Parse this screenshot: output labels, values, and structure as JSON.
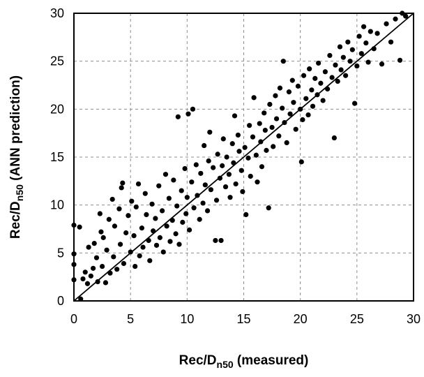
{
  "chart_data": {
    "type": "scatter",
    "xlabel": {
      "main": "Rec/D",
      "sub": "n50",
      "suffix": " (measured)"
    },
    "ylabel": {
      "main": "Rec/D",
      "sub": "n50",
      "suffix": " (ANN prediction)"
    },
    "xlim": [
      0,
      30
    ],
    "ylim": [
      0,
      30
    ],
    "xticks": [
      0,
      5,
      10,
      15,
      20,
      25,
      30
    ],
    "yticks": [
      0,
      5,
      10,
      15,
      20,
      25,
      30
    ],
    "grid": true,
    "legend": "none",
    "reference_line": {
      "from": [
        0,
        0
      ],
      "to": [
        30,
        30
      ]
    },
    "marker_color": "#000000",
    "series": [
      {
        "points": [
          [
            0.0,
            2.2
          ],
          [
            0.0,
            3.8
          ],
          [
            0.0,
            4.9
          ],
          [
            0.0,
            7.9
          ],
          [
            0.5,
            7.7
          ],
          [
            0.6,
            0.2
          ],
          [
            0.8,
            2.3
          ],
          [
            1.0,
            3.0
          ],
          [
            1.2,
            1.8
          ],
          [
            1.3,
            5.6
          ],
          [
            1.5,
            2.6
          ],
          [
            1.7,
            3.4
          ],
          [
            1.8,
            6.0
          ],
          [
            2.0,
            4.5
          ],
          [
            2.1,
            2.0
          ],
          [
            2.3,
            9.1
          ],
          [
            2.4,
            7.2
          ],
          [
            2.5,
            3.6
          ],
          [
            2.6,
            6.6
          ],
          [
            2.8,
            1.9
          ],
          [
            2.9,
            5.3
          ],
          [
            3.1,
            8.5
          ],
          [
            3.2,
            2.9
          ],
          [
            3.4,
            10.6
          ],
          [
            3.5,
            4.6
          ],
          [
            3.6,
            7.8
          ],
          [
            3.8,
            3.3
          ],
          [
            4.0,
            9.6
          ],
          [
            4.1,
            5.9
          ],
          [
            4.2,
            11.8
          ],
          [
            4.3,
            12.3
          ],
          [
            4.4,
            3.9
          ],
          [
            4.6,
            7.1
          ],
          [
            4.8,
            8.9
          ],
          [
            5.0,
            5.1
          ],
          [
            5.1,
            10.4
          ],
          [
            5.3,
            6.8
          ],
          [
            5.4,
            3.6
          ],
          [
            5.5,
            9.8
          ],
          [
            5.7,
            12.2
          ],
          [
            5.8,
            4.7
          ],
          [
            6.0,
            7.6
          ],
          [
            6.1,
            5.6
          ],
          [
            6.3,
            11.2
          ],
          [
            6.4,
            9.0
          ],
          [
            6.6,
            6.3
          ],
          [
            6.7,
            4.2
          ],
          [
            6.9,
            10.1
          ],
          [
            7.0,
            7.3
          ],
          [
            7.2,
            8.6
          ],
          [
            7.3,
            5.8
          ],
          [
            7.5,
            12.0
          ],
          [
            7.6,
            6.6
          ],
          [
            7.8,
            9.4
          ],
          [
            7.9,
            5.1
          ],
          [
            8.1,
            13.2
          ],
          [
            8.2,
            7.8
          ],
          [
            8.4,
            10.7
          ],
          [
            8.5,
            6.2
          ],
          [
            8.7,
            8.4
          ],
          [
            8.8,
            12.6
          ],
          [
            9.0,
            7.0
          ],
          [
            9.1,
            9.9
          ],
          [
            9.2,
            19.2
          ],
          [
            9.3,
            5.9
          ],
          [
            9.5,
            11.5
          ],
          [
            9.6,
            8.2
          ],
          [
            9.8,
            13.8
          ],
          [
            9.9,
            9.1
          ],
          [
            10.0,
            10.8
          ],
          [
            10.1,
            19.5
          ],
          [
            10.2,
            7.4
          ],
          [
            10.4,
            12.4
          ],
          [
            10.5,
            20.0
          ],
          [
            10.6,
            9.7
          ],
          [
            10.8,
            14.2
          ],
          [
            10.9,
            11.0
          ],
          [
            11.1,
            8.5
          ],
          [
            11.2,
            13.3
          ],
          [
            11.4,
            10.2
          ],
          [
            11.5,
            16.2
          ],
          [
            11.6,
            12.1
          ],
          [
            11.8,
            9.4
          ],
          [
            11.9,
            14.6
          ],
          [
            12.0,
            17.6
          ],
          [
            12.1,
            11.6
          ],
          [
            12.3,
            13.9
          ],
          [
            12.5,
            6.3
          ],
          [
            12.6,
            10.5
          ],
          [
            12.7,
            15.3
          ],
          [
            12.9,
            12.8
          ],
          [
            13.0,
            6.3
          ],
          [
            13.1,
            14.1
          ],
          [
            13.2,
            16.9
          ],
          [
            13.4,
            11.9
          ],
          [
            13.5,
            15.0
          ],
          [
            13.7,
            13.2
          ],
          [
            13.8,
            10.8
          ],
          [
            14.0,
            16.4
          ],
          [
            14.1,
            14.4
          ],
          [
            14.2,
            19.3
          ],
          [
            14.3,
            12.2
          ],
          [
            14.5,
            17.3
          ],
          [
            14.6,
            15.6
          ],
          [
            14.8,
            13.6
          ],
          [
            14.9,
            11.4
          ],
          [
            15.1,
            16.0
          ],
          [
            15.2,
            9.0
          ],
          [
            15.4,
            14.9
          ],
          [
            15.5,
            18.3
          ],
          [
            15.6,
            13.0
          ],
          [
            15.8,
            17.1
          ],
          [
            15.9,
            21.2
          ],
          [
            16.1,
            15.2
          ],
          [
            16.2,
            12.4
          ],
          [
            16.4,
            18.5
          ],
          [
            16.5,
            16.6
          ],
          [
            16.6,
            14.0
          ],
          [
            16.8,
            19.6
          ],
          [
            16.9,
            17.8
          ],
          [
            17.0,
            15.7
          ],
          [
            17.2,
            9.7
          ],
          [
            17.3,
            20.5
          ],
          [
            17.5,
            18.1
          ],
          [
            17.6,
            16.1
          ],
          [
            17.8,
            21.4
          ],
          [
            17.9,
            19.0
          ],
          [
            18.1,
            17.2
          ],
          [
            18.2,
            22.2
          ],
          [
            18.4,
            20.1
          ],
          [
            18.5,
            25.0
          ],
          [
            18.6,
            18.6
          ],
          [
            18.8,
            16.5
          ],
          [
            19.0,
            21.8
          ],
          [
            19.1,
            19.5
          ],
          [
            19.3,
            23.0
          ],
          [
            19.4,
            20.7
          ],
          [
            19.6,
            17.9
          ],
          [
            19.8,
            22.4
          ],
          [
            20.0,
            20.0
          ],
          [
            20.1,
            14.5
          ],
          [
            20.2,
            18.9
          ],
          [
            20.3,
            23.5
          ],
          [
            20.5,
            21.1
          ],
          [
            20.7,
            19.4
          ],
          [
            20.8,
            24.2
          ],
          [
            21.0,
            22.0
          ],
          [
            21.1,
            20.3
          ],
          [
            21.3,
            23.2
          ],
          [
            21.5,
            21.5
          ],
          [
            21.6,
            24.8
          ],
          [
            21.8,
            22.7
          ],
          [
            22.0,
            20.9
          ],
          [
            22.2,
            23.9
          ],
          [
            22.4,
            22.1
          ],
          [
            22.6,
            25.6
          ],
          [
            22.8,
            23.3
          ],
          [
            23.0,
            17.0
          ],
          [
            23.1,
            24.6
          ],
          [
            23.3,
            22.9
          ],
          [
            23.5,
            26.5
          ],
          [
            23.6,
            24.1
          ],
          [
            23.8,
            25.4
          ],
          [
            24.0,
            23.5
          ],
          [
            24.2,
            27.0
          ],
          [
            24.4,
            25.0
          ],
          [
            24.6,
            26.2
          ],
          [
            24.8,
            20.6
          ],
          [
            25.0,
            24.5
          ],
          [
            25.2,
            27.6
          ],
          [
            25.4,
            25.8
          ],
          [
            25.6,
            28.6
          ],
          [
            25.8,
            26.9
          ],
          [
            26.0,
            24.9
          ],
          [
            26.2,
            28.1
          ],
          [
            26.5,
            26.3
          ],
          [
            26.8,
            27.9
          ],
          [
            27.2,
            24.7
          ],
          [
            27.6,
            28.9
          ],
          [
            28.0,
            27.0
          ],
          [
            28.4,
            29.4
          ],
          [
            28.8,
            25.1
          ],
          [
            29.0,
            30.0
          ],
          [
            29.3,
            29.7
          ]
        ]
      }
    ]
  }
}
